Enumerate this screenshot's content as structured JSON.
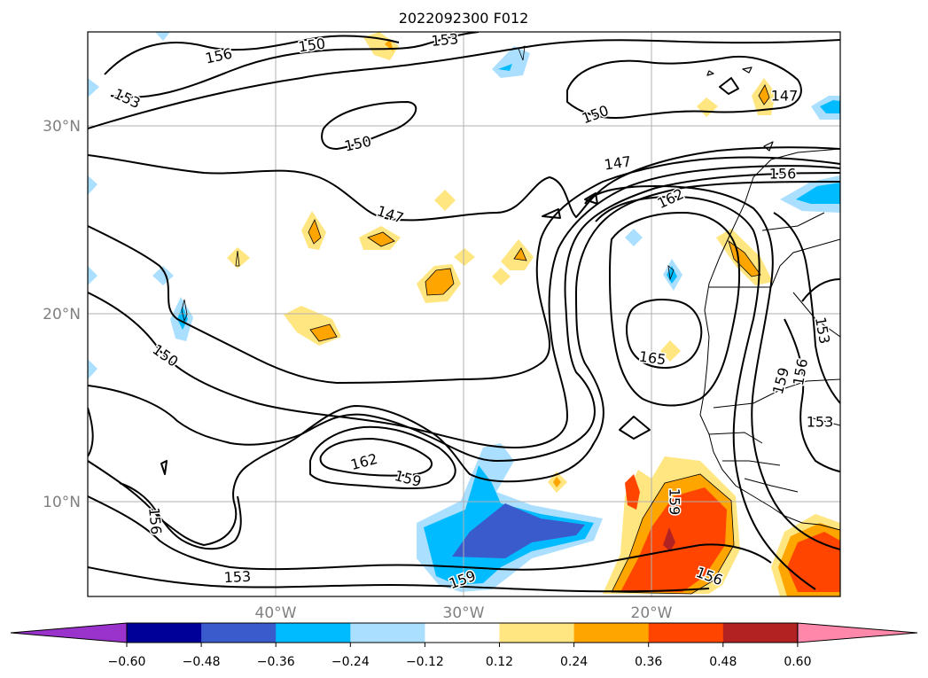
{
  "title": "2022092300 F012",
  "map": {
    "lat_labels": [
      "30°N",
      "20°N",
      "10°N"
    ],
    "lon_labels": [
      "40°W",
      "30°W",
      "20°W"
    ]
  },
  "contour_labels": [
    "153",
    "156",
    "150",
    "153",
    "150",
    "147",
    "150",
    "147",
    "156",
    "162",
    "147",
    "150",
    "165",
    "153",
    "156",
    "159",
    "153",
    "162",
    "159",
    "156",
    "153",
    "159",
    "159",
    "156"
  ],
  "colorbar": {
    "tick_labels": [
      "−0.60",
      "−0.48",
      "−0.36",
      "−0.24",
      "−0.12",
      "0.12",
      "0.24",
      "0.36",
      "0.48",
      "0.60"
    ],
    "colors": [
      "#9933cc",
      "#000099",
      "#3a5bcc",
      "#00bbff",
      "#aadfff",
      "#ffffff",
      "#ffe680",
      "#ffa500",
      "#ff4500",
      "#b22222",
      "#ff88aa"
    ]
  }
}
